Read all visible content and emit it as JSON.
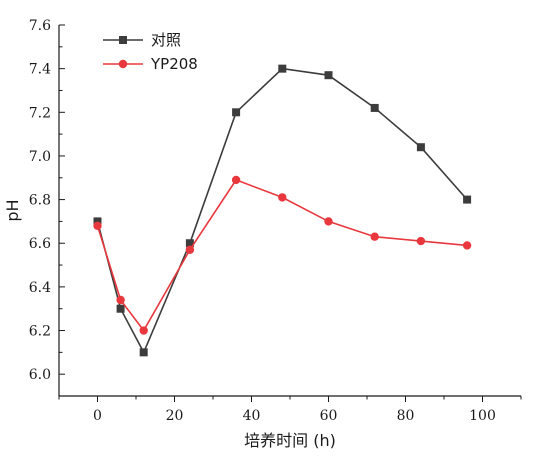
{
  "chart_data": {
    "type": "line",
    "xlabel": "培养时间 (h)",
    "ylabel": "pH",
    "xlim": [
      -10,
      110
    ],
    "ylim": [
      5.9,
      7.6
    ],
    "xticks": [
      0,
      20,
      40,
      60,
      80,
      100
    ],
    "yticks": [
      6.0,
      6.2,
      6.4,
      6.6,
      6.8,
      7.0,
      7.2,
      7.4,
      7.6
    ],
    "xtick_labels": [
      "0",
      "20",
      "40",
      "60",
      "80",
      "100"
    ],
    "ytick_labels": [
      "6.0",
      "6.2",
      "6.4",
      "6.6",
      "6.8",
      "7.0",
      "7.2",
      "7.4",
      "7.6"
    ],
    "grid": false,
    "legend_position": "top-left",
    "series": [
      {
        "name": "对照",
        "color": "#3c3c3c",
        "marker": "square",
        "x": [
          0,
          6,
          12,
          24,
          36,
          48,
          60,
          72,
          84,
          96
        ],
        "y": [
          6.7,
          6.3,
          6.1,
          6.6,
          7.2,
          7.4,
          7.37,
          7.22,
          7.04,
          6.8
        ]
      },
      {
        "name": "YP208",
        "color": "#e8383d",
        "marker": "circle",
        "x": [
          0,
          6,
          12,
          24,
          36,
          48,
          60,
          72,
          84,
          96
        ],
        "y": [
          6.68,
          6.34,
          6.2,
          6.57,
          6.89,
          6.81,
          6.7,
          6.63,
          6.61,
          6.59
        ]
      }
    ]
  }
}
